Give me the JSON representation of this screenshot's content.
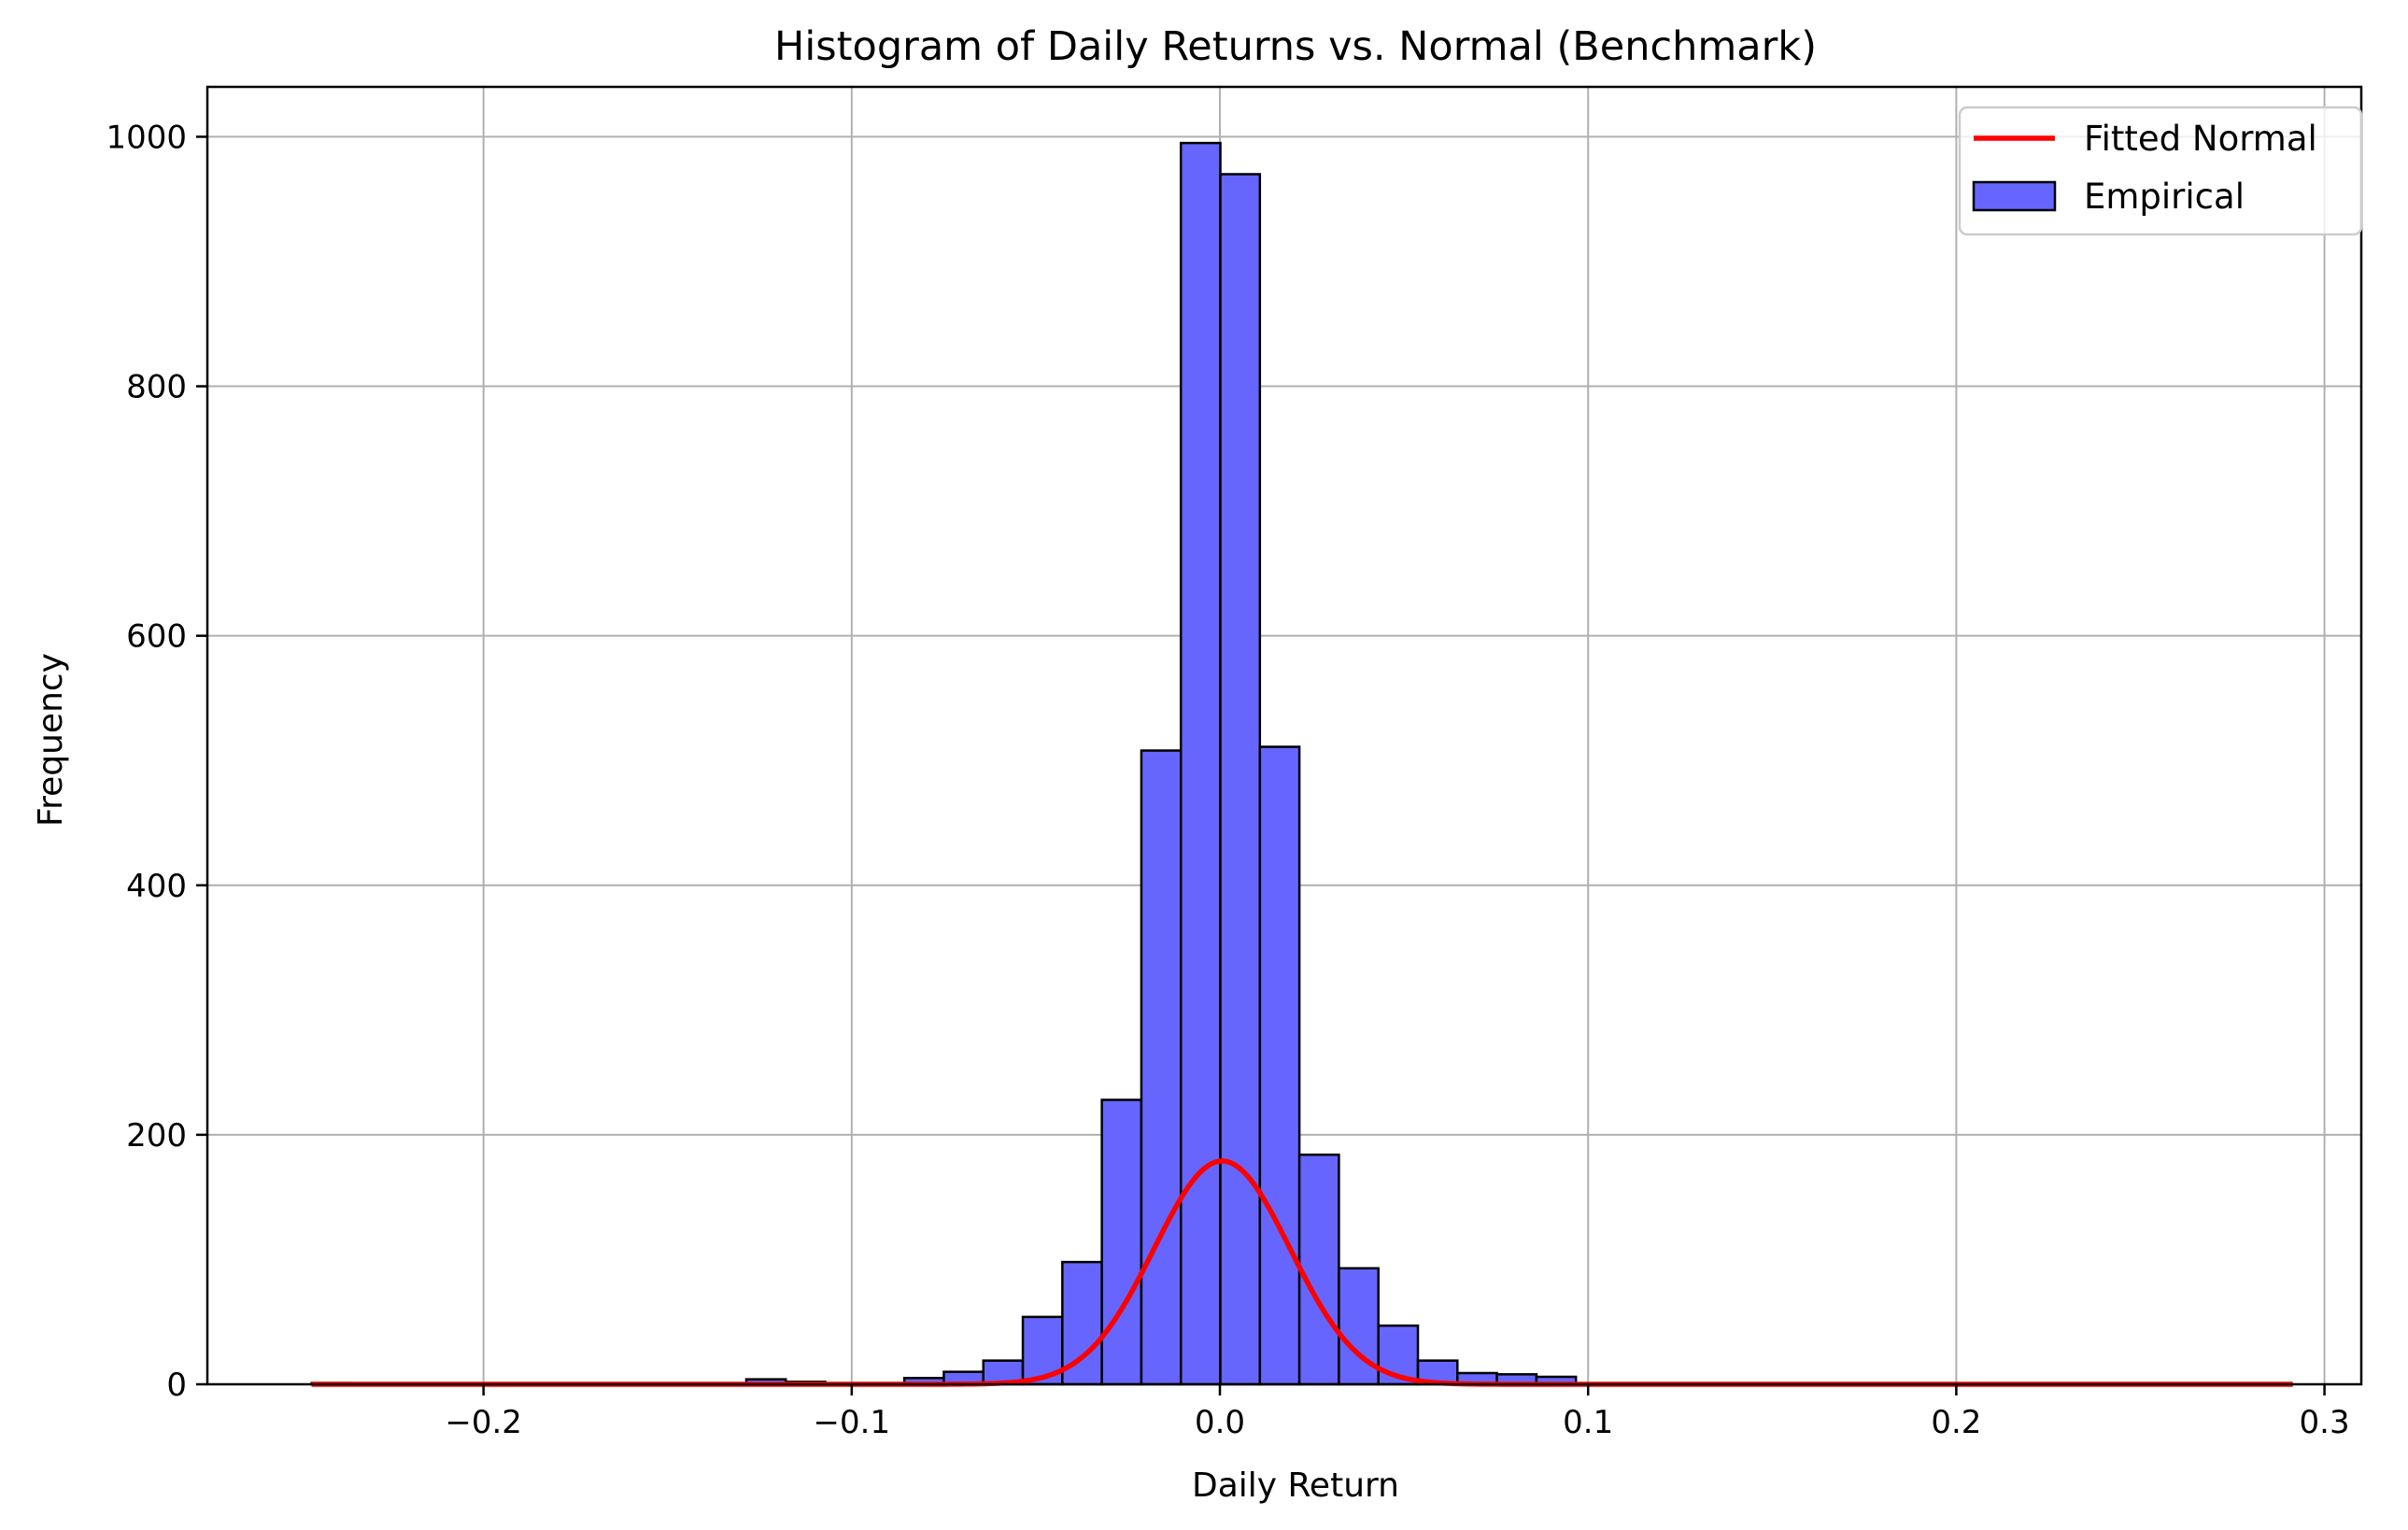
{
  "chart_data": {
    "type": "bar",
    "title": "Histogram of Daily Returns vs. Normal (Benchmark)",
    "xlabel": "Daily Return",
    "ylabel": "Frequency",
    "xlim": [
      -0.275,
      0.31
    ],
    "ylim": [
      0,
      1040
    ],
    "grid": true,
    "legend_position": "top-right",
    "x_ticks": [
      {
        "value": -0.2,
        "label": "−0.2"
      },
      {
        "value": -0.1,
        "label": "−0.1"
      },
      {
        "value": 0.0,
        "label": "0.0"
      },
      {
        "value": 0.1,
        "label": "0.1"
      },
      {
        "value": 0.2,
        "label": "0.2"
      },
      {
        "value": 0.3,
        "label": "0.3"
      }
    ],
    "y_ticks": [
      {
        "value": 0,
        "label": "0"
      },
      {
        "value": 200,
        "label": "200"
      },
      {
        "value": 400,
        "label": "400"
      },
      {
        "value": 600,
        "label": "600"
      },
      {
        "value": 800,
        "label": "800"
      },
      {
        "value": 1000,
        "label": "1000"
      }
    ],
    "bin_width": 0.01073,
    "bins": [
      {
        "left": -0.24666,
        "count": 1
      },
      {
        "left": -0.12863,
        "count": 4
      },
      {
        "left": -0.1179,
        "count": 2
      },
      {
        "left": -0.08571,
        "count": 5
      },
      {
        "left": -0.07498,
        "count": 10
      },
      {
        "left": -0.06425,
        "count": 19
      },
      {
        "left": -0.05352,
        "count": 54
      },
      {
        "left": -0.04279,
        "count": 98
      },
      {
        "left": -0.03206,
        "count": 228
      },
      {
        "left": -0.02133,
        "count": 508
      },
      {
        "left": -0.0106,
        "count": 995
      },
      {
        "left": 0.00013,
        "count": 970
      },
      {
        "left": 0.01086,
        "count": 511
      },
      {
        "left": 0.02159,
        "count": 184
      },
      {
        "left": 0.03232,
        "count": 93
      },
      {
        "left": 0.04305,
        "count": 47
      },
      {
        "left": 0.05378,
        "count": 19
      },
      {
        "left": 0.06451,
        "count": 9
      },
      {
        "left": 0.07524,
        "count": 8
      },
      {
        "left": 0.08597,
        "count": 6
      }
    ],
    "series": [
      {
        "name": "Fitted Normal",
        "type": "line",
        "color": "#ff0000",
        "mean": 0.0006,
        "peak": 179,
        "std": 0.0185,
        "x_range": [
          -0.2467,
          0.2914
        ]
      },
      {
        "name": "Empirical",
        "type": "bar",
        "color": "#6666ff",
        "edge_color": "#000000"
      }
    ]
  }
}
